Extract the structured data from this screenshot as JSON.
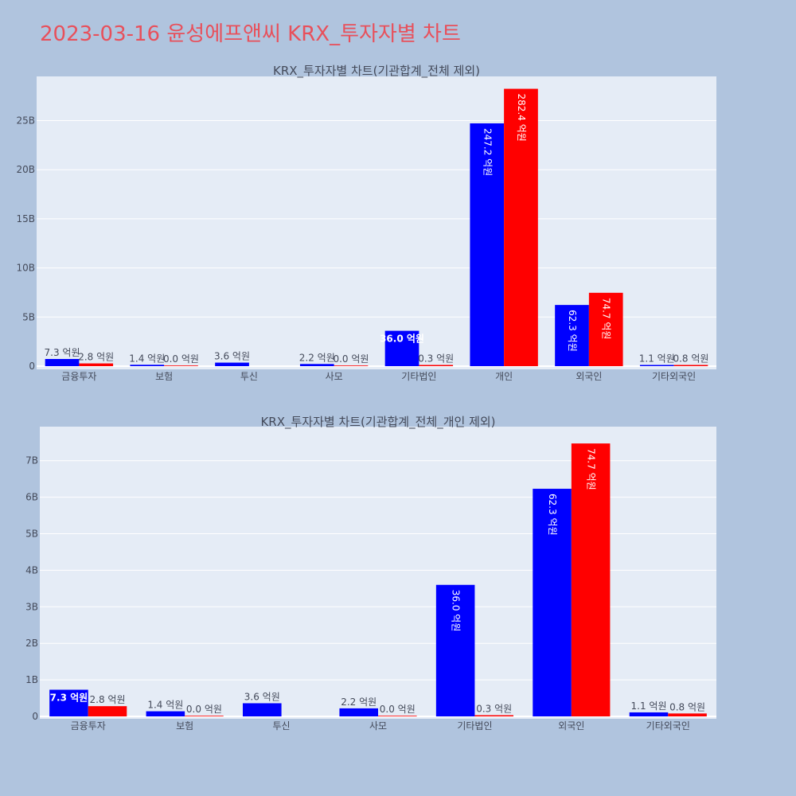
{
  "title": "2023-03-16 윤성에프앤씨 KRX_투자자별 차트",
  "colors": {
    "buy": "#0000ff",
    "sell": "#ff0000",
    "plot_bg": "#e5ecf6",
    "page_bg": "#b0c4de",
    "title": "#e8505b"
  },
  "chart_data": [
    {
      "type": "bar",
      "title": "KRX_투자자별 차트(기관합계_전체 제외)",
      "categories": [
        "금융투자",
        "보험",
        "투신",
        "사모",
        "기타법인",
        "개인",
        "외국인",
        "기타외국인"
      ],
      "series": [
        {
          "values": [
            730000000,
            140000000,
            360000000,
            220000000,
            3600000000,
            24720000000,
            6230000000,
            110000000
          ],
          "labels": [
            "7.3 억원",
            "1.4 억원",
            "3.6 억원",
            "2.2 억원",
            "36.0 억원",
            "247.2 억원",
            "62.3 억원",
            "1.1 억원"
          ]
        },
        {
          "values": [
            280000000,
            0,
            null,
            0,
            30000000,
            28240000000,
            7470000000,
            80000000
          ],
          "labels": [
            "2.8 억원",
            "0.0 억원",
            "",
            "0.0 억원",
            "0.3 억원",
            "282.4 억원",
            "74.7 억원",
            "0.8 억원"
          ]
        }
      ],
      "ylim": [
        0,
        29500000000
      ],
      "yticks": [
        0,
        5000000000,
        10000000000,
        15000000000,
        20000000000,
        25000000000
      ],
      "ytick_labels": [
        "0",
        "5B",
        "10B",
        "15B",
        "20B",
        "25B"
      ],
      "grid": true,
      "legend": "none"
    },
    {
      "type": "bar",
      "title": "KRX_투자자별 차트(기관합계_전체_개인 제외)",
      "categories": [
        "금융투자",
        "보험",
        "투신",
        "사모",
        "기타법인",
        "외국인",
        "기타외국인"
      ],
      "series": [
        {
          "values": [
            730000000,
            140000000,
            360000000,
            220000000,
            3600000000,
            6230000000,
            110000000
          ],
          "labels": [
            "7.3 억원",
            "1.4 억원",
            "3.6 억원",
            "2.2 억원",
            "36.0 억원",
            "62.3 억원",
            "1.1 억원"
          ]
        },
        {
          "values": [
            280000000,
            0,
            null,
            0,
            30000000,
            7470000000,
            80000000
          ],
          "labels": [
            "2.8 억원",
            "0.0 억원",
            "",
            "0.0 억원",
            "0.3 억원",
            "74.7 억원",
            "0.8 억원"
          ]
        }
      ],
      "ylim": [
        0,
        7930000000
      ],
      "yticks": [
        0,
        1000000000,
        2000000000,
        3000000000,
        4000000000,
        5000000000,
        6000000000,
        7000000000
      ],
      "ytick_labels": [
        "0",
        "1B",
        "2B",
        "3B",
        "4B",
        "5B",
        "6B",
        "7B"
      ],
      "grid": true,
      "legend": "none"
    }
  ]
}
